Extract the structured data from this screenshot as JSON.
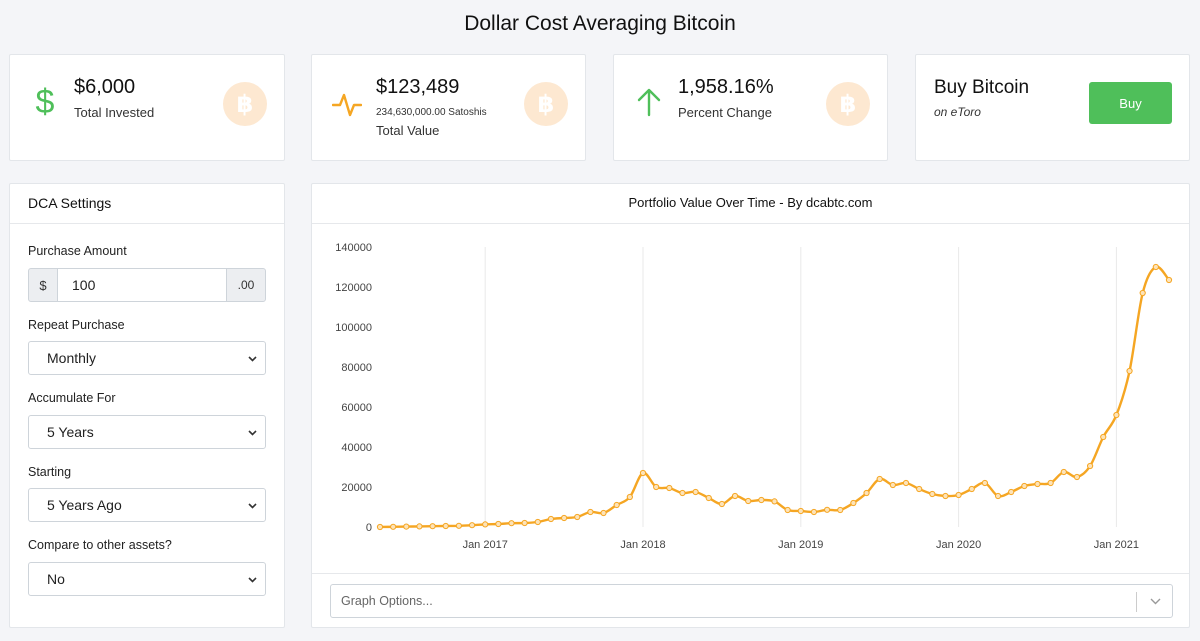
{
  "page": {
    "title": "Dollar Cost Averaging Bitcoin"
  },
  "stats": [
    {
      "value": "$6,000",
      "label": "Total Invested",
      "icon": "dollar-icon",
      "color": "#4fbf5a"
    },
    {
      "value": "$123,489",
      "sub": "234,630,000.00 Satoshis",
      "label": "Total Value",
      "icon": "pulse-icon",
      "color": "#f5a623"
    },
    {
      "value": "1,958.16%",
      "label": "Percent Change",
      "icon": "arrow-up-icon",
      "color": "#4fbf5a"
    }
  ],
  "btc_glyph": "฿",
  "buy": {
    "title": "Buy Bitcoin",
    "sub": "on eToro",
    "button": "Buy",
    "color": "#4fbf5a"
  },
  "settings": {
    "title": "DCA Settings",
    "purchase_amount": {
      "label": "Purchase Amount",
      "prefix": "$",
      "value": "100",
      "suffix": ".00"
    },
    "repeat": {
      "label": "Repeat Purchase",
      "value": "Monthly"
    },
    "accumulate": {
      "label": "Accumulate For",
      "value": "5 Years"
    },
    "starting": {
      "label": "Starting",
      "value": "5 Years Ago"
    },
    "compare": {
      "label": "Compare to other assets?",
      "value": "No"
    }
  },
  "graph_options": {
    "placeholder": "Graph Options..."
  },
  "chart_data": {
    "type": "line",
    "title": "Portfolio Value Over Time - By dcabtc.com",
    "xlabel": "",
    "ylabel": "",
    "ylim": [
      0,
      140000
    ],
    "yticks": [
      0,
      20000,
      40000,
      60000,
      80000,
      100000,
      120000,
      140000
    ],
    "xtick_labels": [
      "Jan 2017",
      "Jan 2018",
      "Jan 2019",
      "Jan 2020",
      "Jan 2021"
    ],
    "grid": "vertical",
    "line_color": "#f5a623",
    "x": [
      "2016-05",
      "2016-06",
      "2016-07",
      "2016-08",
      "2016-09",
      "2016-10",
      "2016-11",
      "2016-12",
      "2017-01",
      "2017-02",
      "2017-03",
      "2017-04",
      "2017-05",
      "2017-06",
      "2017-07",
      "2017-08",
      "2017-09",
      "2017-10",
      "2017-11",
      "2017-12",
      "2018-01",
      "2018-02",
      "2018-03",
      "2018-04",
      "2018-05",
      "2018-06",
      "2018-07",
      "2018-08",
      "2018-09",
      "2018-10",
      "2018-11",
      "2018-12",
      "2019-01",
      "2019-02",
      "2019-03",
      "2019-04",
      "2019-05",
      "2019-06",
      "2019-07",
      "2019-08",
      "2019-09",
      "2019-10",
      "2019-11",
      "2019-12",
      "2020-01",
      "2020-02",
      "2020-03",
      "2020-04",
      "2020-05",
      "2020-06",
      "2020-07",
      "2020-08",
      "2020-09",
      "2020-10",
      "2020-11",
      "2020-12",
      "2021-01",
      "2021-02",
      "2021-03",
      "2021-04",
      "2021-05"
    ],
    "values": [
      0,
      100,
      200,
      300,
      400,
      500,
      600,
      900,
      1300,
      1500,
      1900,
      2000,
      2500,
      4000,
      4500,
      5000,
      7500,
      7000,
      11000,
      15000,
      27000,
      20000,
      19500,
      17000,
      17500,
      14500,
      11500,
      15500,
      13000,
      13500,
      12800,
      8500,
      8000,
      7500,
      8600,
      8500,
      12000,
      17000,
      24000,
      21000,
      22000,
      19000,
      16500,
      15500,
      16000,
      19000,
      22000,
      15500,
      17500,
      20500,
      21500,
      22000,
      27500,
      25000,
      30500,
      45000,
      56000,
      78000,
      117000,
      130000,
      123500
    ]
  }
}
